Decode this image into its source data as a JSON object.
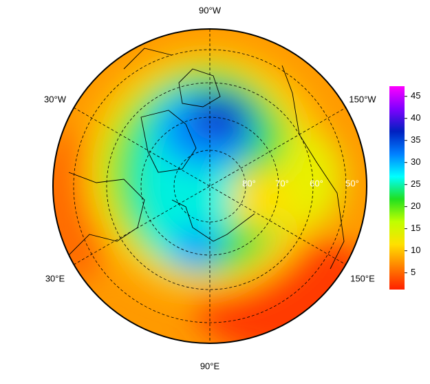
{
  "map": {
    "lon_labels": [
      "90°W",
      "30°W",
      "150°W",
      "30°E",
      "150°E",
      "90°E"
    ],
    "lat_labels": [
      "80°",
      "70°",
      "60°",
      "50°"
    ]
  },
  "colorbar": {
    "lim": [
      1.2,
      47.3
    ],
    "ticks": [
      5,
      10,
      15,
      20,
      25,
      30,
      35,
      40,
      45
    ],
    "colors": [
      "#ff2000",
      "#ff8000",
      "#ffe000",
      "#c0ff00",
      "#20e020",
      "#00ffff",
      "#0080ff",
      "#0020c0",
      "#8000ff",
      "#ff00ff"
    ]
  }
}
